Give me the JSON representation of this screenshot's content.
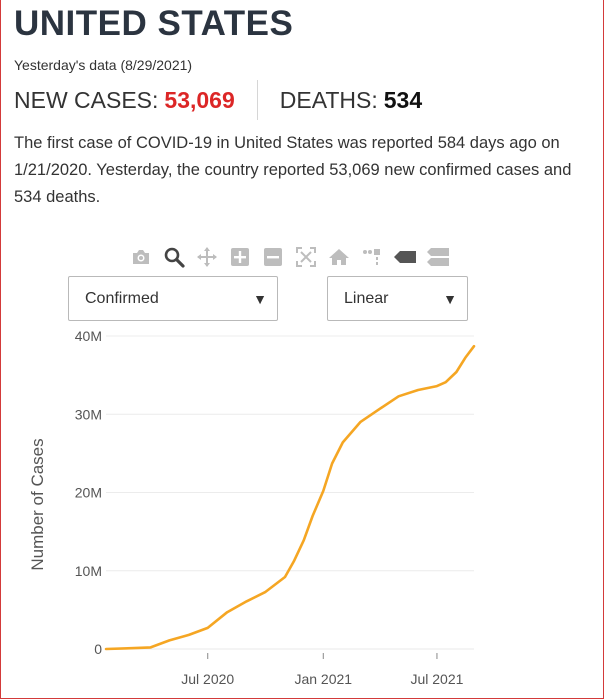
{
  "header": {
    "title": "UNITED STATES",
    "subtitle": "Yesterday's data (8/29/2021)"
  },
  "stats": {
    "new_cases_label": "NEW CASES:",
    "new_cases_value": "53,069",
    "deaths_label": "DEATHS:",
    "deaths_value": "534"
  },
  "description": {
    "part1": "The first case of ",
    "disease": "COVID-19",
    "part2": " in United States was reported 584 days ago on 1/21/2020. Yesterday, the country reported 53,069 new confirmed cases and 534 deaths."
  },
  "modebar": {
    "icons": [
      "camera-icon",
      "zoom-icon",
      "pan-icon",
      "zoom-in-icon",
      "zoom-out-icon",
      "autoscale-icon",
      "reset-axes-icon",
      "spike-lines-icon",
      "hover-closest-icon",
      "hover-compare-icon"
    ]
  },
  "controls": {
    "type_select": "Confirmed",
    "scale_select": "Linear"
  },
  "colors": {
    "accent_red": "#dc2626",
    "line": "#f5a623",
    "title": "#2b3440"
  },
  "chart_data": {
    "type": "line",
    "title": "",
    "xlabel": "",
    "ylabel": "Number of Cases",
    "x_range": [
      "2020-01-21",
      "2021-08-29"
    ],
    "ylim": [
      0,
      40000000
    ],
    "y_ticks": [
      0,
      10000000,
      20000000,
      30000000,
      40000000
    ],
    "y_tick_labels": [
      "0",
      "10M",
      "20M",
      "30M",
      "40M"
    ],
    "x_ticks": [
      "2020-07-01",
      "2021-01-01",
      "2021-07-01"
    ],
    "x_tick_labels": [
      "Jul 2020",
      "Jan 2021",
      "Jul 2021"
    ],
    "grid": true,
    "series": [
      {
        "x": [
          "2020-01-21",
          "2020-03-01",
          "2020-04-01",
          "2020-05-01",
          "2020-06-01",
          "2020-07-01",
          "2020-08-01",
          "2020-09-01",
          "2020-10-01",
          "2020-11-01",
          "2020-11-15",
          "2020-12-01",
          "2020-12-15",
          "2021-01-01",
          "2021-01-15",
          "2021-02-01",
          "2021-03-01",
          "2021-04-01",
          "2021-05-01",
          "2021-06-01",
          "2021-07-01",
          "2021-07-15",
          "2021-08-01",
          "2021-08-15",
          "2021-08-29"
        ],
        "y": [
          0,
          100000,
          200000,
          1100000,
          1800000,
          2700000,
          4700000,
          6100000,
          7300000,
          9200000,
          11200000,
          13900000,
          17000000,
          20200000,
          23700000,
          26400000,
          29000000,
          30700000,
          32300000,
          33100000,
          33600000,
          34100000,
          35400000,
          37200000,
          38700000
        ]
      }
    ]
  }
}
